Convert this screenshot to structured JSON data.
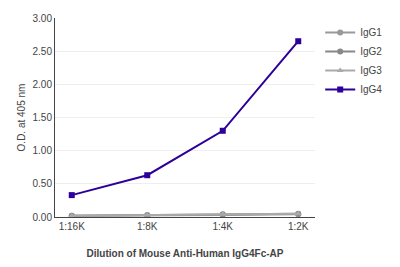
{
  "chart_data": {
    "type": "line",
    "categories": [
      "1:16K",
      "1:8K",
      "1:4K",
      "1:2K"
    ],
    "series": [
      {
        "name": "IgG1",
        "color": "#999999",
        "marker": "circle",
        "values": [
          0.02,
          0.02,
          0.03,
          0.04
        ]
      },
      {
        "name": "IgG2",
        "color": "#888888",
        "marker": "circle",
        "values": [
          0.02,
          0.03,
          0.04,
          0.05
        ]
      },
      {
        "name": "IgG3",
        "color": "#aaaaaa",
        "marker": "triangle-up",
        "values": [
          0.02,
          0.03,
          0.04,
          0.05
        ]
      },
      {
        "name": "IgG4",
        "color": "#2d0099",
        "marker": "square",
        "values": [
          0.33,
          0.63,
          1.3,
          2.65
        ]
      }
    ],
    "x_label": "Dilution of Mouse Anti-Human IgG4Fc-AP",
    "y_label": "O.D. at 405 nm",
    "ylim": [
      0.0,
      3.0
    ],
    "yticks": [
      {
        "value": 0.0,
        "label": "0.00"
      },
      {
        "value": 0.5,
        "label": "0.50"
      },
      {
        "value": 1.0,
        "label": "1.00"
      },
      {
        "value": 1.5,
        "label": "1.50"
      },
      {
        "value": 2.0,
        "label": "2.00"
      },
      {
        "value": 2.5,
        "label": "2.50"
      },
      {
        "value": 3.0,
        "label": "3.00"
      }
    ],
    "grid": true,
    "legend": "right"
  }
}
